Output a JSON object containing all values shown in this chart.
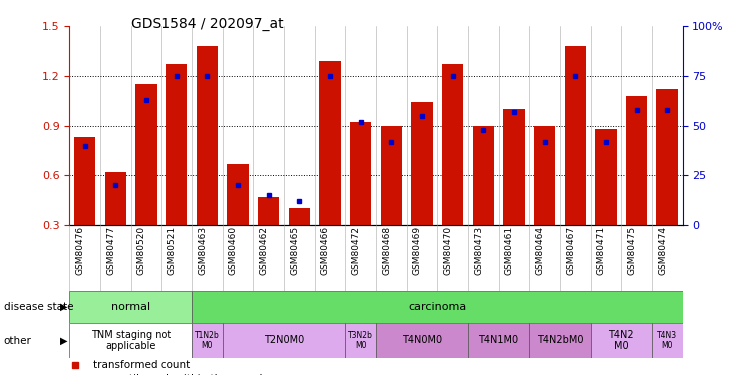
{
  "title": "GDS1584 / 202097_at",
  "samples": [
    "GSM80476",
    "GSM80477",
    "GSM80520",
    "GSM80521",
    "GSM80463",
    "GSM80460",
    "GSM80462",
    "GSM80465",
    "GSM80466",
    "GSM80472",
    "GSM80468",
    "GSM80469",
    "GSM80470",
    "GSM80473",
    "GSM80461",
    "GSM80464",
    "GSM80467",
    "GSM80471",
    "GSM80475",
    "GSM80474"
  ],
  "transformed_count": [
    0.83,
    0.62,
    1.15,
    1.27,
    1.38,
    0.67,
    0.47,
    0.4,
    1.29,
    0.92,
    0.9,
    1.04,
    1.27,
    0.9,
    1.0,
    0.9,
    1.38,
    0.88,
    1.08,
    1.12
  ],
  "percentile_rank": [
    0.4,
    0.2,
    0.63,
    0.75,
    0.75,
    0.2,
    0.15,
    0.12,
    0.75,
    0.52,
    0.42,
    0.55,
    0.75,
    0.48,
    0.57,
    0.42,
    0.75,
    0.42,
    0.58,
    0.58
  ],
  "bar_color": "#cc1100",
  "blue_color": "#0000cc",
  "ylim": [
    0.3,
    1.5
  ],
  "yticks": [
    0.3,
    0.6,
    0.9,
    1.2,
    1.5
  ],
  "right_yticks": [
    0,
    25,
    50,
    75,
    100
  ],
  "disease_color_normal": "#99ee99",
  "disease_color_carcinoma": "#66dd66",
  "other_groups": [
    {
      "label": "TNM staging not\napplicable",
      "start": 0,
      "end": 4,
      "color": "#ffffff"
    },
    {
      "label": "T1N2b\nM0",
      "start": 4,
      "end": 5,
      "color": "#ddaaee"
    },
    {
      "label": "T2N0M0",
      "start": 5,
      "end": 9,
      "color": "#ddaaee"
    },
    {
      "label": "T3N2b\nM0",
      "start": 9,
      "end": 10,
      "color": "#ddaaee"
    },
    {
      "label": "T4N0M0",
      "start": 10,
      "end": 13,
      "color": "#cc88cc"
    },
    {
      "label": "T4N1M0",
      "start": 13,
      "end": 15,
      "color": "#cc88cc"
    },
    {
      "label": "T4N2bM0",
      "start": 15,
      "end": 17,
      "color": "#cc88cc"
    },
    {
      "label": "T4N2\nM0",
      "start": 17,
      "end": 19,
      "color": "#ddaaee"
    },
    {
      "label": "T4N3\nM0",
      "start": 19,
      "end": 20,
      "color": "#ddaaee"
    }
  ],
  "tick_color_left": "#cc1100",
  "tick_color_right": "#0000cc",
  "title_fontsize": 10
}
